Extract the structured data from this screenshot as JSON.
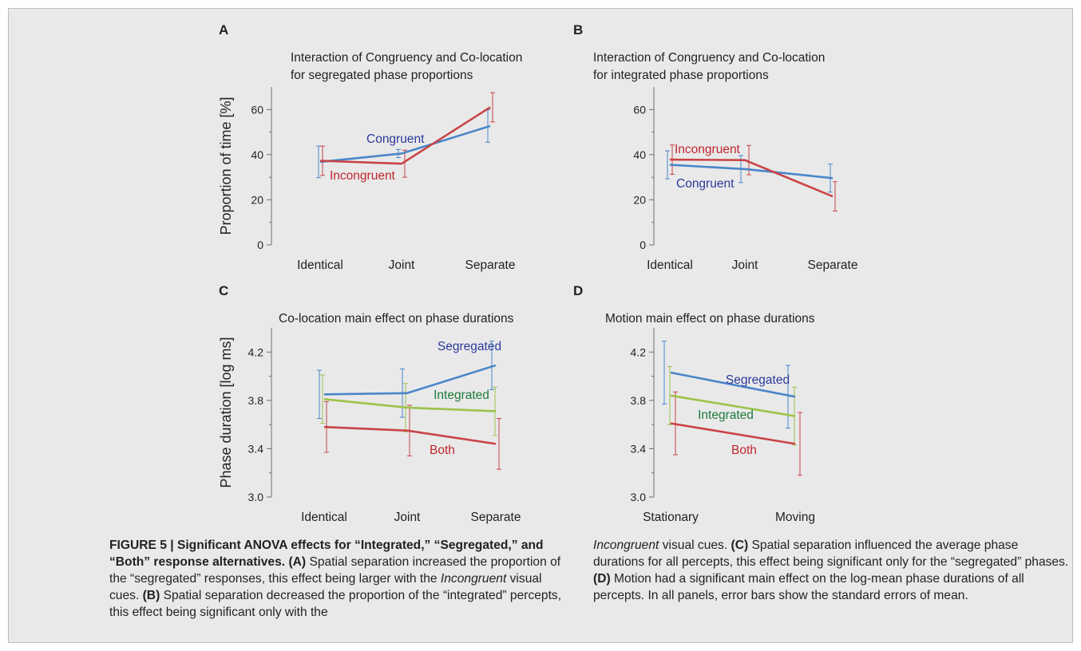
{
  "panels": [
    {
      "letter": "A",
      "title_lines": [
        "Interaction of Congruency and Co-location",
        "for segregated phase proportions"
      ],
      "ylabel": "Proportion of time [%]"
    },
    {
      "letter": "B",
      "title_lines": [
        "Interaction of Congruency and Co-location",
        "for integrated phase proportions"
      ],
      "ylabel": ""
    },
    {
      "letter": "C",
      "title_lines": [
        "Co-location main effect on phase durations"
      ],
      "ylabel": "Phase duration [log ms]"
    },
    {
      "letter": "D",
      "title_lines": [
        "Motion main effect on phase durations"
      ],
      "ylabel": ""
    }
  ],
  "chart_data": [
    {
      "type": "line",
      "panel": "A",
      "title": "Interaction of Congruency and Co-location for segregated phase proportions",
      "ylabel": "Proportion of time [%]",
      "categories": [
        "Identical",
        "Joint",
        "Separate"
      ],
      "yticks": [
        "0",
        "20",
        "40",
        "60"
      ],
      "ylim": [
        0,
        70
      ],
      "series": [
        {
          "name": "Congruent",
          "color": "#4a86c8",
          "values": [
            36.8,
            40.5,
            52.7
          ],
          "errors": [
            7.0,
            1.8,
            7.2
          ]
        },
        {
          "name": "Incongruent",
          "color": "#c94346",
          "values": [
            37.3,
            36.0,
            61.0
          ],
          "errors": [
            6.5,
            6.0,
            6.5
          ]
        }
      ]
    },
    {
      "type": "line",
      "panel": "B",
      "title": "Interaction of Congruency and Co-location for integrated phase proportions",
      "ylabel": "",
      "categories": [
        "Identical",
        "Joint",
        "Separate"
      ],
      "yticks": [
        "0",
        "20",
        "40",
        "60"
      ],
      "ylim": [
        0,
        70
      ],
      "series": [
        {
          "name": "Congruent",
          "color": "#4a86c8",
          "values": [
            35.5,
            33.6,
            29.6
          ],
          "errors": [
            6.2,
            6.0,
            6.2
          ]
        },
        {
          "name": "Incongruent",
          "color": "#c94346",
          "values": [
            37.8,
            37.6,
            21.5
          ],
          "errors": [
            6.5,
            6.5,
            6.5
          ]
        }
      ]
    },
    {
      "type": "line",
      "panel": "C",
      "title": "Co-location main effect on phase durations",
      "ylabel": "Phase duration [log ms]",
      "categories": [
        "Identical",
        "Joint",
        "Separate"
      ],
      "yticks": [
        "3.0",
        "3.4",
        "3.8",
        "4.2"
      ],
      "ylim": [
        3.0,
        4.4
      ],
      "series": [
        {
          "name": "Segregated",
          "color": "#4a86c8",
          "values": [
            3.85,
            3.86,
            4.09
          ],
          "errors": [
            0.2,
            0.2,
            0.2
          ]
        },
        {
          "name": "Integrated",
          "color": "#9cc34a",
          "values": [
            3.81,
            3.74,
            3.71
          ],
          "errors": [
            0.2,
            0.2,
            0.2
          ]
        },
        {
          "name": "Both",
          "color": "#c94346",
          "values": [
            3.58,
            3.55,
            3.44
          ],
          "errors": [
            0.21,
            0.21,
            0.21
          ]
        }
      ]
    },
    {
      "type": "line",
      "panel": "D",
      "title": "Motion main effect on phase durations",
      "ylabel": "",
      "categories": [
        "Stationary",
        "Moving"
      ],
      "yticks": [
        "3.0",
        "3.4",
        "3.8",
        "4.2"
      ],
      "ylim": [
        3.0,
        4.4
      ],
      "series": [
        {
          "name": "Segregated",
          "color": "#4a86c8",
          "values": [
            4.03,
            3.83
          ],
          "errors": [
            0.26,
            0.26
          ]
        },
        {
          "name": "Integrated",
          "color": "#9cc34a",
          "values": [
            3.84,
            3.67
          ],
          "errors": [
            0.24,
            0.24
          ]
        },
        {
          "name": "Both",
          "color": "#c94346",
          "values": [
            3.61,
            3.44
          ],
          "errors": [
            0.26,
            0.26
          ]
        }
      ]
    }
  ],
  "caption": {
    "left": [
      {
        "text": "FIGURE 5 | Significant ANOVA effects for “Integrated,” “Segregated,” and “Both” response alternatives.",
        "style": "b"
      },
      {
        "text": " (A)",
        "style": "b"
      },
      {
        "text": " Spatial separation increased the proportion of the “segregated” responses, this effect being larger with the ",
        "style": ""
      },
      {
        "text": "Incongruent",
        "style": "i"
      },
      {
        "text": " visual cues. ",
        "style": ""
      },
      {
        "text": "(B)",
        "style": "b"
      },
      {
        "text": " Spatial separation decreased the proportion of the “integrated” percepts, this effect being significant only with the",
        "style": ""
      }
    ],
    "right": [
      {
        "text": "Incongruent",
        "style": "i"
      },
      {
        "text": " visual cues. ",
        "style": ""
      },
      {
        "text": "(C)",
        "style": "b"
      },
      {
        "text": " Spatial separation influenced the average phase durations for all percepts, this effect being significant only for the “segregated” phases. ",
        "style": ""
      },
      {
        "text": "(D)",
        "style": "b"
      },
      {
        "text": " Motion had a significant main effect on the log-mean phase durations of all percepts. In all panels, error bars show the standard errors of mean.",
        "style": ""
      }
    ]
  }
}
